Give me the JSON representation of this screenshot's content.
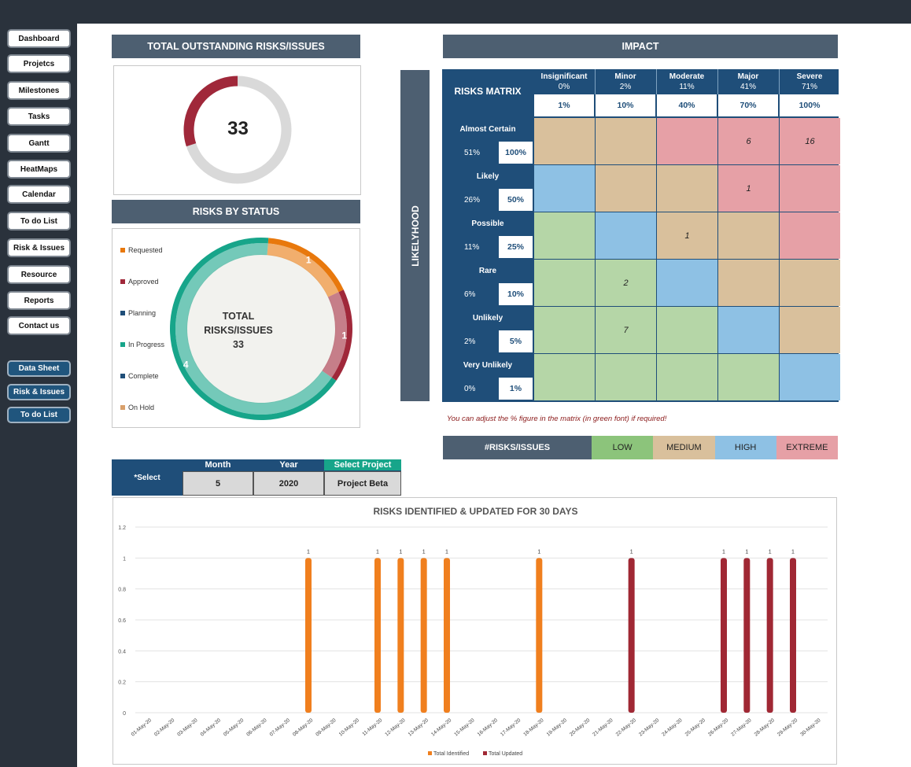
{
  "sidebar": {
    "items": [
      "Dashboard",
      "Projetcs",
      "Milestones",
      "Tasks",
      "Gantt",
      "HeatMaps",
      "Calendar",
      "To do List",
      "Risk & Issues",
      "Resource",
      "Reports",
      "Contact us"
    ],
    "blue_items": [
      "Data Sheet",
      "Risk & Issues",
      "To do List"
    ]
  },
  "outstanding": {
    "title": "TOTAL OUTSTANDING RISKS/ISSUES",
    "total": "33",
    "fraction": 0.3
  },
  "status": {
    "title": "RISKS BY STATUS",
    "legend": [
      {
        "label": "Requested",
        "color": "#e8780c"
      },
      {
        "label": "Approved",
        "color": "#a0283a"
      },
      {
        "label": "Planning",
        "color": "#1f4e79"
      },
      {
        "label": "In Progress",
        "color": "#17a58a"
      },
      {
        "label": "Complete",
        "color": "#1f4e79"
      },
      {
        "label": "On Hold",
        "color": "#d9a06b"
      }
    ],
    "center_line1": "TOTAL",
    "center_line2": "RISKS/ISSUES",
    "center_total": "33",
    "segments": [
      {
        "label": "Requested",
        "value": 1,
        "display": "1",
        "color": "#e8780c"
      },
      {
        "label": "Approved",
        "value": 1,
        "display": "1",
        "color": "#a0283a"
      },
      {
        "label": "In Progress",
        "value": 4,
        "display": "4",
        "color": "#17a58a"
      }
    ]
  },
  "impact_title": "IMPACT",
  "likelihood_title": "LIKELYHOOD",
  "matrix": {
    "title": "RISKS MATRIX",
    "columns": [
      {
        "name": "Insignificant",
        "pct": "0%",
        "val": "1%"
      },
      {
        "name": "Minor",
        "pct": "2%",
        "val": "10%"
      },
      {
        "name": "Moderate",
        "pct": "11%",
        "val": "40%"
      },
      {
        "name": "Major",
        "pct": "41%",
        "val": "70%"
      },
      {
        "name": "Severe",
        "pct": "71%",
        "val": "100%"
      }
    ],
    "rows": [
      {
        "name": "Almost Certain",
        "pct": "51%",
        "val": "100%",
        "cells": [
          "M",
          "M",
          "E",
          "E",
          "E"
        ],
        "values": [
          "",
          "",
          "",
          "6",
          "16"
        ]
      },
      {
        "name": "Likely",
        "pct": "26%",
        "val": "50%",
        "cells": [
          "H",
          "M",
          "M",
          "E",
          "E"
        ],
        "values": [
          "",
          "",
          "",
          "1",
          ""
        ]
      },
      {
        "name": "Possible",
        "pct": "11%",
        "val": "25%",
        "cells": [
          "L",
          "H",
          "M",
          "M",
          "E"
        ],
        "values": [
          "",
          "",
          "1",
          "",
          ""
        ]
      },
      {
        "name": "Rare",
        "pct": "6%",
        "val": "10%",
        "cells": [
          "L",
          "L",
          "H",
          "M",
          "M"
        ],
        "values": [
          "",
          "2",
          "",
          "",
          ""
        ]
      },
      {
        "name": "Unlikely",
        "pct": "2%",
        "val": "5%",
        "cells": [
          "L",
          "L",
          "L",
          "H",
          "M"
        ],
        "values": [
          "",
          "7",
          "",
          "",
          ""
        ]
      },
      {
        "name": "Very Unlikely",
        "pct": "0%",
        "val": "1%",
        "cells": [
          "L",
          "L",
          "L",
          "L",
          "H"
        ],
        "values": [
          "",
          "",
          "",
          "",
          ""
        ]
      }
    ],
    "note": "You can adjust the % figure in the matrix (in green font) if required!"
  },
  "level_colors": {
    "L": "#b5d6a7",
    "M": "#d9c09c",
    "H": "#8ec1e4",
    "E": "#e6a0a6"
  },
  "legend_band": {
    "label": "#RISKS/ISSUES",
    "levels": [
      {
        "name": "LOW",
        "color": "#8cc47b"
      },
      {
        "name": "MEDIUM",
        "color": "#d9c09c"
      },
      {
        "name": "HIGH",
        "color": "#8ec1e4"
      },
      {
        "name": "EXTREME",
        "color": "#e6a0a6"
      }
    ]
  },
  "selector": {
    "label": "*Select",
    "month_label": "Month",
    "month": "5",
    "year_label": "Year",
    "year": "2020",
    "project_label": "Select Project",
    "project": "Project Beta"
  },
  "chart_data": {
    "type": "bar",
    "title": "RISKS IDENTIFIED & UPDATED FOR 30 DAYS",
    "xlabel": "",
    "ylabel": "",
    "ylim": [
      0,
      1.2
    ],
    "yticks": [
      "0",
      "0.2",
      "0.4",
      "0.6",
      "0.8",
      "1",
      "1.2"
    ],
    "categories": [
      "01-May-20",
      "02-May-20",
      "03-May-20",
      "04-May-20",
      "05-May-20",
      "06-May-20",
      "07-May-20",
      "08-May-20",
      "09-May-20",
      "10-May-20",
      "11-May-20",
      "12-May-20",
      "13-May-20",
      "14-May-20",
      "15-May-20",
      "16-May-20",
      "17-May-20",
      "18-May-20",
      "19-May-20",
      "20-May-20",
      "21-May-20",
      "22-May-20",
      "23-May-20",
      "24-May-20",
      "25-May-20",
      "26-May-20",
      "27-May-20",
      "28-May-20",
      "29-May-20",
      "30-May-20"
    ],
    "series": [
      {
        "name": "Total Identified",
        "color": "#f07f1e",
        "values": [
          0,
          0,
          0,
          0,
          0,
          0,
          0,
          1,
          0,
          0,
          1,
          1,
          1,
          1,
          0,
          0,
          0,
          1,
          0,
          0,
          0,
          0,
          0,
          0,
          0,
          0,
          0,
          0,
          0,
          0
        ]
      },
      {
        "name": "Total Updated",
        "color": "#a02834",
        "values": [
          0,
          0,
          0,
          0,
          0,
          0,
          0,
          0,
          0,
          0,
          0,
          0,
          0,
          0,
          0,
          0,
          0,
          0,
          0,
          0,
          0,
          1,
          0,
          0,
          0,
          1,
          1,
          1,
          1,
          0
        ]
      }
    ],
    "grid": true,
    "legend": "bottom"
  }
}
